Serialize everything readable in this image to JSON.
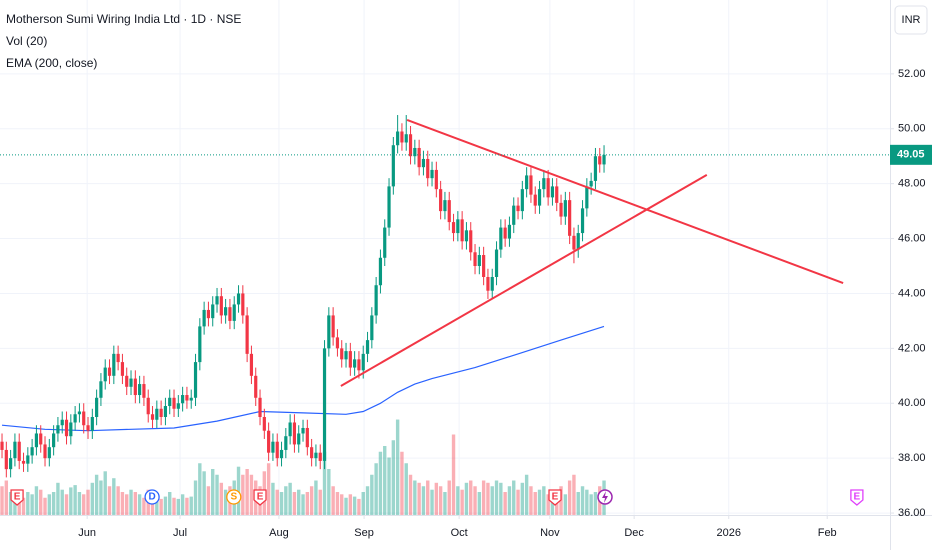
{
  "chart_data": {
    "type": "candlestick",
    "title": "Motherson Sumi Wiring India Ltd · 1D · NSE",
    "indicators": [
      "Vol (20)",
      "EMA (200, close)"
    ],
    "currency": "INR",
    "up_color": "#089981",
    "down_color": "#f23645",
    "open": [
      38.6,
      38.3,
      37.6,
      38.0,
      38.6,
      37.9,
      37.8,
      38.1,
      38.4,
      38.9,
      38.5,
      38.0,
      38.4,
      38.9,
      39.2,
      39.4,
      38.8,
      39.3,
      39.6,
      39.7,
      39.2,
      39.0,
      39.5,
      40.2,
      40.8,
      41.3,
      41.0,
      41.8,
      41.5,
      41.0,
      40.6,
      40.9,
      40.3,
      40.7,
      40.2,
      39.6,
      39.4,
      39.8,
      39.5,
      39.9,
      40.2,
      39.8,
      40.0,
      40.3,
      40.1,
      40.2,
      41.5,
      42.8,
      43.4,
      43.1,
      43.6,
      43.9,
      43.2,
      43.5,
      43.0,
      43.6,
      44.0,
      43.2,
      41.8,
      41.0,
      40.2,
      39.5,
      39.0,
      38.2,
      38.6,
      38.0,
      38.3,
      38.8,
      39.3,
      38.5,
      38.9,
      39.1,
      38.4,
      38.0,
      38.2,
      37.9,
      42.0,
      43.2,
      42.4,
      42.0,
      41.6,
      41.9,
      41.3,
      41.6,
      41.2,
      41.8,
      42.3,
      43.2,
      44.3,
      45.3,
      46.4,
      47.9,
      49.4,
      49.9,
      49.5,
      49.8,
      49.0,
      49.3,
      48.6,
      48.9,
      48.2,
      48.5,
      47.8,
      47.0,
      47.4,
      46.6,
      46.2,
      46.7,
      45.9,
      46.3,
      45.5,
      45.0,
      45.4,
      44.6,
      44.1,
      44.6,
      45.6,
      46.4,
      46.0,
      46.5,
      47.2,
      47.0,
      47.8,
      48.3,
      47.6,
      47.2,
      47.8,
      48.2,
      47.5,
      47.9,
      47.3,
      46.8,
      47.4,
      46.1,
      45.6,
      46.2,
      47.1,
      47.9,
      48.1,
      49.0,
      48.7
    ],
    "high": [
      38.9,
      38.6,
      38.3,
      38.9,
      38.9,
      38.2,
      38.4,
      38.7,
      39.2,
      39.2,
      38.8,
      38.7,
      39.2,
      39.5,
      39.7,
      39.7,
      39.6,
      39.9,
      40.0,
      40.0,
      39.5,
      39.8,
      40.5,
      41.1,
      41.6,
      41.6,
      42.1,
      42.1,
      41.8,
      41.3,
      41.2,
      41.2,
      41.0,
      41.0,
      40.5,
      39.9,
      40.1,
      40.1,
      40.2,
      40.5,
      40.5,
      40.3,
      40.6,
      40.6,
      40.5,
      41.8,
      43.1,
      43.7,
      43.7,
      43.9,
      44.2,
      44.2,
      43.8,
      43.8,
      43.9,
      44.3,
      44.3,
      43.5,
      42.1,
      41.3,
      40.5,
      39.8,
      39.3,
      38.9,
      38.9,
      38.6,
      39.1,
      39.6,
      39.6,
      39.2,
      39.4,
      39.4,
      38.7,
      38.5,
      38.5,
      42.3,
      43.5,
      43.5,
      42.7,
      42.3,
      42.2,
      42.2,
      41.9,
      41.9,
      42.1,
      42.6,
      43.5,
      44.6,
      45.6,
      46.7,
      48.2,
      49.7,
      50.5,
      50.2,
      50.5,
      50.1,
      49.6,
      49.6,
      49.2,
      49.2,
      48.8,
      48.8,
      48.1,
      47.7,
      47.7,
      46.9,
      47.0,
      47.0,
      46.6,
      46.6,
      45.8,
      45.7,
      45.7,
      44.9,
      44.9,
      45.9,
      46.7,
      46.7,
      46.8,
      47.5,
      47.5,
      48.1,
      48.6,
      48.6,
      47.9,
      48.1,
      48.5,
      48.5,
      48.2,
      48.2,
      47.6,
      47.7,
      47.7,
      46.4,
      46.5,
      47.4,
      48.2,
      48.4,
      49.3,
      49.3,
      49.4
    ],
    "low": [
      38.0,
      37.3,
      37.3,
      37.7,
      37.6,
      37.5,
      37.5,
      37.8,
      38.1,
      38.2,
      37.7,
      37.7,
      38.1,
      38.6,
      38.9,
      38.5,
      38.5,
      39.0,
      39.3,
      38.9,
      38.7,
      38.7,
      39.2,
      39.9,
      40.5,
      40.7,
      40.7,
      41.2,
      40.7,
      40.3,
      40.3,
      40.0,
      40.0,
      39.9,
      39.3,
      39.1,
      39.1,
      39.2,
      39.2,
      39.6,
      39.5,
      39.5,
      39.7,
      39.8,
      39.8,
      39.9,
      41.2,
      42.5,
      42.8,
      42.8,
      43.3,
      42.9,
      42.9,
      42.7,
      42.7,
      43.3,
      42.9,
      41.5,
      40.7,
      39.9,
      39.2,
      38.7,
      37.9,
      37.9,
      37.7,
      37.7,
      38.0,
      38.5,
      38.2,
      38.2,
      38.6,
      38.1,
      37.7,
      37.7,
      37.6,
      37.6,
      41.7,
      42.1,
      41.7,
      41.3,
      41.3,
      41.0,
      41.0,
      40.9,
      40.9,
      41.5,
      42.0,
      42.9,
      44.0,
      45.0,
      46.1,
      47.6,
      49.1,
      49.2,
      49.2,
      48.7,
      48.7,
      48.3,
      48.3,
      47.9,
      47.9,
      47.5,
      46.7,
      46.7,
      46.3,
      45.9,
      45.9,
      45.6,
      45.6,
      45.2,
      44.7,
      44.7,
      44.3,
      43.8,
      43.8,
      44.3,
      45.3,
      45.7,
      45.7,
      46.2,
      46.7,
      46.7,
      47.5,
      47.3,
      46.9,
      46.9,
      47.5,
      47.2,
      47.2,
      47.0,
      46.5,
      46.5,
      45.8,
      45.1,
      45.3,
      45.9,
      46.8,
      47.6,
      47.8,
      48.4,
      48.4
    ],
    "close": [
      38.3,
      37.6,
      38.0,
      38.6,
      37.9,
      37.8,
      38.1,
      38.4,
      38.9,
      38.5,
      38.0,
      38.4,
      38.9,
      39.2,
      39.4,
      38.8,
      39.3,
      39.6,
      39.7,
      39.2,
      39.0,
      39.5,
      40.2,
      40.8,
      41.3,
      41.0,
      41.8,
      41.5,
      41.0,
      40.6,
      40.9,
      40.3,
      40.7,
      40.2,
      39.6,
      39.4,
      39.8,
      39.5,
      39.9,
      40.2,
      39.8,
      40.0,
      40.3,
      40.1,
      40.2,
      41.5,
      42.8,
      43.4,
      43.1,
      43.6,
      43.9,
      43.2,
      43.5,
      43.0,
      43.6,
      44.0,
      43.2,
      41.8,
      41.0,
      40.2,
      39.5,
      39.0,
      38.2,
      38.6,
      38.0,
      38.3,
      38.8,
      39.3,
      38.5,
      38.9,
      39.1,
      38.4,
      38.0,
      38.2,
      37.9,
      42.0,
      43.2,
      42.4,
      42.0,
      41.6,
      41.9,
      41.3,
      41.6,
      41.2,
      41.8,
      42.3,
      43.2,
      44.3,
      45.3,
      46.4,
      47.9,
      49.4,
      49.9,
      49.5,
      49.8,
      49.0,
      49.3,
      48.6,
      48.9,
      48.2,
      48.5,
      47.8,
      47.0,
      47.4,
      46.6,
      46.2,
      46.7,
      45.9,
      46.3,
      45.5,
      45.0,
      45.4,
      44.6,
      44.1,
      44.6,
      45.6,
      46.4,
      46.0,
      46.5,
      47.2,
      47.0,
      47.8,
      48.3,
      47.6,
      47.2,
      47.8,
      48.2,
      47.5,
      47.9,
      47.3,
      46.8,
      47.4,
      46.1,
      45.6,
      46.2,
      47.1,
      47.9,
      48.1,
      49.0,
      48.7,
      49.05
    ],
    "volume": [
      25,
      30,
      20,
      18,
      22,
      15,
      20,
      18,
      25,
      22,
      15,
      18,
      20,
      28,
      22,
      18,
      24,
      26,
      20,
      18,
      22,
      28,
      35,
      30,
      38,
      25,
      32,
      25,
      20,
      18,
      22,
      20,
      18,
      15,
      22,
      15,
      18,
      14,
      16,
      20,
      15,
      14,
      18,
      15,
      16,
      30,
      45,
      38,
      25,
      40,
      35,
      28,
      22,
      25,
      30,
      42,
      35,
      40,
      35,
      30,
      25,
      38,
      45,
      28,
      22,
      20,
      25,
      28,
      20,
      22,
      18,
      20,
      25,
      30,
      22,
      55,
      40,
      25,
      20,
      18,
      15,
      18,
      16,
      14,
      20,
      25,
      35,
      45,
      55,
      60,
      50,
      65,
      83,
      55,
      45,
      35,
      30,
      28,
      25,
      30,
      22,
      28,
      25,
      20,
      30,
      70,
      25,
      22,
      28,
      30,
      25,
      20,
      30,
      28,
      25,
      30,
      28,
      20,
      25,
      30,
      22,
      28,
      35,
      25,
      20,
      22,
      25,
      18,
      20,
      22,
      25,
      18,
      30,
      35,
      20,
      25,
      22,
      18,
      20,
      25,
      30
    ],
    "volume_ylim": [
      0,
      100
    ],
    "ema": {
      "color": "#2962ff",
      "x": [
        0,
        10,
        20,
        30,
        40,
        50,
        60,
        70,
        80,
        84,
        88,
        92,
        96,
        100,
        110,
        120,
        130,
        140
      ],
      "values": [
        39.2,
        39.05,
        39.0,
        39.05,
        39.1,
        39.35,
        39.7,
        39.65,
        39.6,
        39.7,
        40.0,
        40.4,
        40.7,
        40.9,
        41.3,
        41.8,
        42.3,
        42.8
      ]
    },
    "trendlines": [
      {
        "color": "#f23645",
        "x": [
          94.2,
          195.6
        ],
        "values": [
          50.32,
          44.38
        ]
      },
      {
        "color": "#f23645",
        "x": [
          78.8,
          163.9
        ],
        "values": [
          40.63,
          48.32
        ]
      }
    ],
    "last_price": 49.05,
    "events": [
      {
        "x": 3.5,
        "label": "E",
        "color": "#f23645"
      },
      {
        "x": 34.9,
        "label": "D",
        "color": "#2962ff"
      },
      {
        "x": 53.9,
        "label": "S",
        "color": "#ff9800"
      },
      {
        "x": 60.0,
        "label": "E",
        "color": "#f23645"
      },
      {
        "x": 128.6,
        "label": "E",
        "color": "#f23645"
      },
      {
        "x": 198.8,
        "label": "E",
        "color": "#e040fb"
      }
    ],
    "xlim": [
      -0.47,
      206.5
    ],
    "xticks": [
      {
        "value": 19.8,
        "label": "Jun"
      },
      {
        "value": 41.4,
        "label": "Jul"
      },
      {
        "value": 64.4,
        "label": "Aug"
      },
      {
        "value": 84.2,
        "label": "Sep"
      },
      {
        "value": 106.3,
        "label": "Oct"
      },
      {
        "value": 127.4,
        "label": "Nov"
      },
      {
        "value": 147,
        "label": "Dec"
      },
      {
        "value": 169,
        "label": "2026"
      },
      {
        "value": 191.9,
        "label": "Feb"
      }
    ],
    "ylim": [
      35.93,
      54.69
    ],
    "yticks": [
      {
        "value": 36,
        "label": "36.00"
      },
      {
        "value": 38,
        "label": "38.00"
      },
      {
        "value": 40,
        "label": "40.00"
      },
      {
        "value": 42,
        "label": "42.00"
      },
      {
        "value": 44,
        "label": "44.00"
      },
      {
        "value": 46,
        "label": "46.00"
      },
      {
        "value": 48,
        "label": "48.00"
      },
      {
        "value": 50,
        "label": "50.00"
      },
      {
        "value": 52,
        "label": "52.00"
      }
    ],
    "grid": true
  }
}
